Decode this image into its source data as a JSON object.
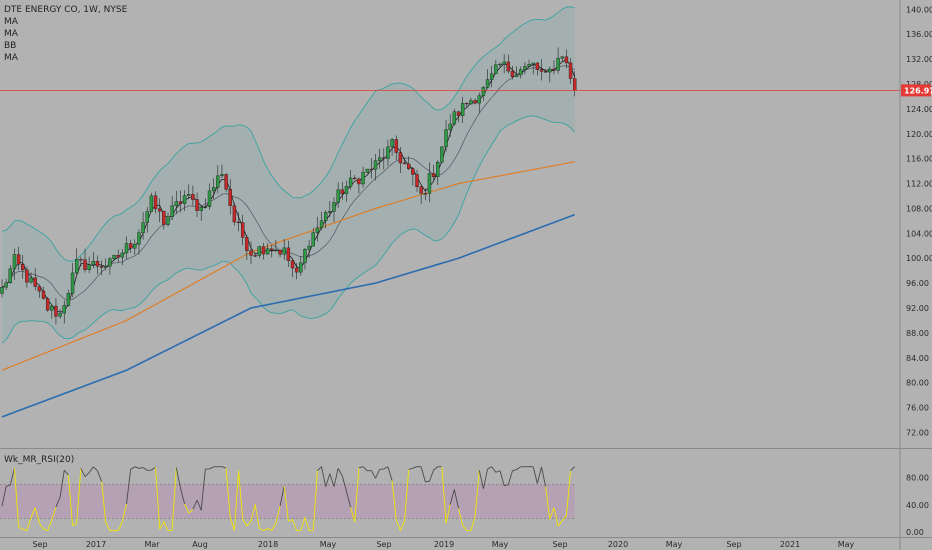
{
  "legend": {
    "symbol": "DTE ENERGY CO, 1W, NYSE",
    "indicators": [
      "MA",
      "MA",
      "BB",
      "MA"
    ]
  },
  "price_tag": "126.97",
  "rsi_label": "Wk_MR_RSI(20)",
  "colors": {
    "background": "#b2b2b2",
    "up_candle": "#2e9a46",
    "down_candle": "#c62828",
    "ma_fast": "#1f1f1f",
    "ma_orange": "#e07a1f",
    "ma_blue": "#2b6cb0",
    "bollinger": "#3aa3a0",
    "last_price_line": "#e53935",
    "rsi_line": "#4a4a4a",
    "rsi_oversold": "#f2e600",
    "rsi_band": "#b58bb5"
  },
  "chart_data": [
    {
      "type": "candlestick",
      "title": "DTE ENERGY CO, 1W, NYSE",
      "last_price": 126.97,
      "ylim": [
        69.5,
        141.5
      ],
      "y_ticks": [
        "140.00",
        "136.00",
        "132.00",
        "128.00",
        "124.00",
        "120.00",
        "116.00",
        "112.00",
        "108.00",
        "104.00",
        "100.00",
        "96.00",
        "92.00",
        "88.00",
        "84.00",
        "80.00",
        "76.00",
        "72.00"
      ],
      "x_ticks": [
        "Sep",
        "2017",
        "Mar",
        "Aug",
        "2018",
        "May",
        "Sep",
        "2019",
        "May",
        "Sep",
        "2020",
        "May",
        "Sep",
        "2021",
        "May"
      ],
      "waypoints": [
        [
          0,
          95
        ],
        [
          3,
          99.5
        ],
        [
          7,
          96
        ],
        [
          11,
          92
        ],
        [
          14,
          91
        ],
        [
          18,
          99
        ],
        [
          26,
          99
        ],
        [
          32,
          103
        ],
        [
          36,
          109
        ],
        [
          39,
          106
        ],
        [
          44,
          110
        ],
        [
          48,
          108
        ],
        [
          53,
          114
        ],
        [
          56,
          106
        ],
        [
          60,
          101
        ],
        [
          64,
          102
        ],
        [
          68,
          101
        ],
        [
          71,
          97
        ],
        [
          74,
          103
        ],
        [
          78,
          107
        ],
        [
          82,
          111
        ],
        [
          86,
          113
        ],
        [
          90,
          115
        ],
        [
          94,
          118
        ],
        [
          98,
          114
        ],
        [
          101,
          110
        ],
        [
          104,
          114
        ],
        [
          108,
          122
        ],
        [
          112,
          125
        ],
        [
          116,
          127
        ],
        [
          120,
          131
        ],
        [
          124,
          130
        ],
        [
          128,
          131
        ],
        [
          131,
          129
        ],
        [
          135,
          133
        ],
        [
          138,
          127
        ]
      ],
      "bollinger_width": [
        [
          0,
          9
        ],
        [
          10,
          7
        ],
        [
          18,
          6
        ],
        [
          30,
          8
        ],
        [
          45,
          10
        ],
        [
          55,
          11
        ],
        [
          60,
          13
        ],
        [
          70,
          9
        ],
        [
          78,
          11
        ],
        [
          90,
          14
        ],
        [
          100,
          11
        ],
        [
          110,
          10
        ],
        [
          120,
          7
        ],
        [
          131,
          8
        ],
        [
          138,
          10
        ]
      ],
      "ma_fast_lag": 2,
      "ma_orange": [
        [
          0,
          82
        ],
        [
          30,
          90
        ],
        [
          60,
          101
        ],
        [
          90,
          108
        ],
        [
          110,
          112
        ],
        [
          138,
          115.5
        ]
      ],
      "ma_blue": [
        [
          0,
          74.5
        ],
        [
          30,
          82
        ],
        [
          60,
          92
        ],
        [
          90,
          96
        ],
        [
          110,
          100
        ],
        [
          138,
          107
        ]
      ]
    },
    {
      "type": "line",
      "title": "Wk_MR_RSI(20)",
      "ylim": [
        0,
        100
      ],
      "y_ticks": [
        "80.00",
        "40.00",
        "0.00"
      ],
      "x_ticks": [
        "Sep",
        "2017",
        "Mar",
        "Aug",
        "2018",
        "May",
        "Sep",
        "2019",
        "May",
        "Sep",
        "2020",
        "May",
        "Sep",
        "2021",
        "May"
      ],
      "band": [
        20,
        70
      ],
      "oversold_threshold": 30,
      "seed": 7
    }
  ]
}
